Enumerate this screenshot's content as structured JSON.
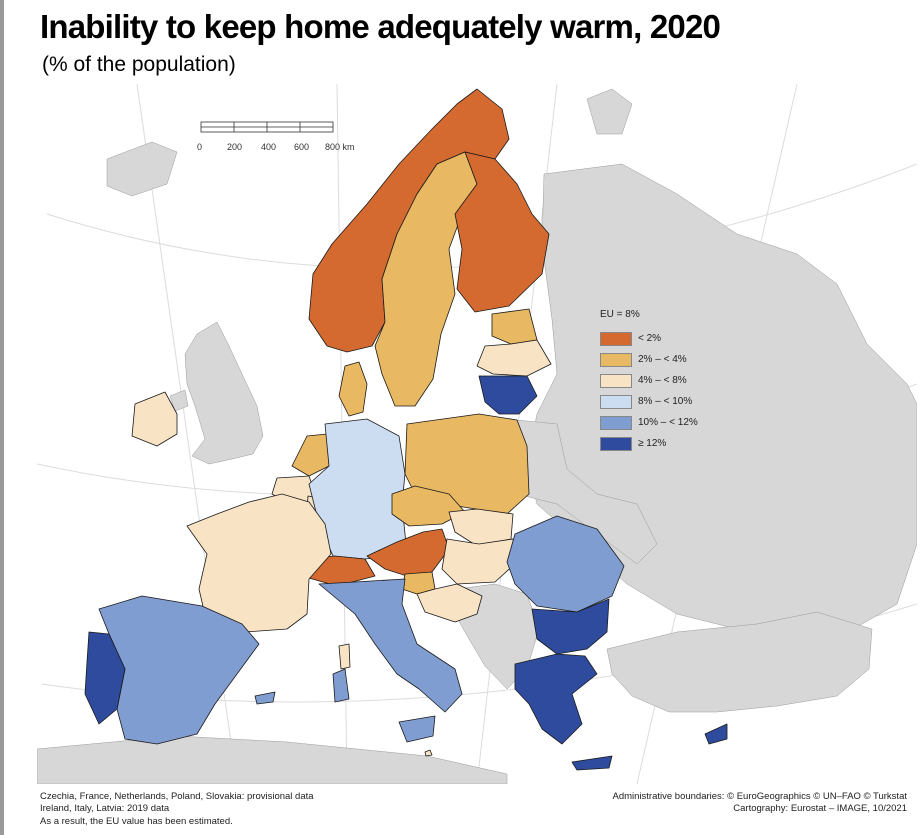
{
  "title": "Inability to keep home adequately warm, 2020",
  "subtitle": "(% of the population)",
  "scale_bar": {
    "labels": [
      "0",
      "200",
      "400",
      "600",
      "800 km"
    ]
  },
  "legend": {
    "title": "EU = 8%",
    "items": [
      {
        "label": "< 2%",
        "color": "#d46a2f"
      },
      {
        "label": "2% – < 4%",
        "color": "#e8b862"
      },
      {
        "label": "4% – < 8%",
        "color": "#f8e3c5"
      },
      {
        "label": "8% – < 10%",
        "color": "#ccdcf1"
      },
      {
        "label": "10% – < 12%",
        "color": "#809dd1"
      },
      {
        "label": "≥ 12%",
        "color": "#2e4b9e"
      }
    ]
  },
  "colors": {
    "no_data": "#d7d7d7",
    "sea": "#ffffff",
    "border": "#1a1a1a",
    "graticule": "#dcdcdc"
  },
  "countries": [
    {
      "name": "Norway",
      "class": "< 2%"
    },
    {
      "name": "Finland",
      "class": "< 2%"
    },
    {
      "name": "Switzerland",
      "class": "< 2%"
    },
    {
      "name": "Austria",
      "class": "< 2%"
    },
    {
      "name": "Sweden",
      "class": "2% – < 4%"
    },
    {
      "name": "Poland",
      "class": "2% – < 4%"
    },
    {
      "name": "Czechia",
      "class": "2% – < 4%"
    },
    {
      "name": "Estonia",
      "class": "2% – < 4%"
    },
    {
      "name": "Netherlands",
      "class": "2% – < 4%"
    },
    {
      "name": "Denmark",
      "class": "2% – < 4%"
    },
    {
      "name": "Slovenia",
      "class": "2% – < 4%"
    },
    {
      "name": "France",
      "class": "4% – < 8%"
    },
    {
      "name": "Ireland",
      "class": "4% – < 8%"
    },
    {
      "name": "Belgium",
      "class": "4% – < 8%"
    },
    {
      "name": "Luxembourg",
      "class": "4% – < 8%"
    },
    {
      "name": "Latvia",
      "class": "4% – < 8%"
    },
    {
      "name": "Slovakia",
      "class": "4% – < 8%"
    },
    {
      "name": "Hungary",
      "class": "4% – < 8%"
    },
    {
      "name": "Croatia",
      "class": "4% – < 8%"
    },
    {
      "name": "Malta",
      "class": "4% – < 8%"
    },
    {
      "name": "Germany",
      "class": "8% – < 10%"
    },
    {
      "name": "Spain",
      "class": "10% – < 12%"
    },
    {
      "name": "Italy",
      "class": "10% – < 12%"
    },
    {
      "name": "Romania",
      "class": "10% – < 12%"
    },
    {
      "name": "Portugal",
      "class": "≥ 12%"
    },
    {
      "name": "Lithuania",
      "class": "≥ 12%"
    },
    {
      "name": "Bulgaria",
      "class": "≥ 12%"
    },
    {
      "name": "Greece",
      "class": "≥ 12%"
    },
    {
      "name": "Cyprus",
      "class": "≥ 12%"
    }
  ],
  "footnotes_left": [
    "Czechia, France, Netherlands, Poland, Slovakia: provisional data",
    "Ireland, Italy, Latvia: 2019 data",
    "As a result, the EU value has been estimated."
  ],
  "footnotes_right": [
    "Administrative boundaries: © EuroGeographics © UN–FAO © Turkstat",
    "Cartography: Eurostat – IMAGE, 10/2021"
  ]
}
